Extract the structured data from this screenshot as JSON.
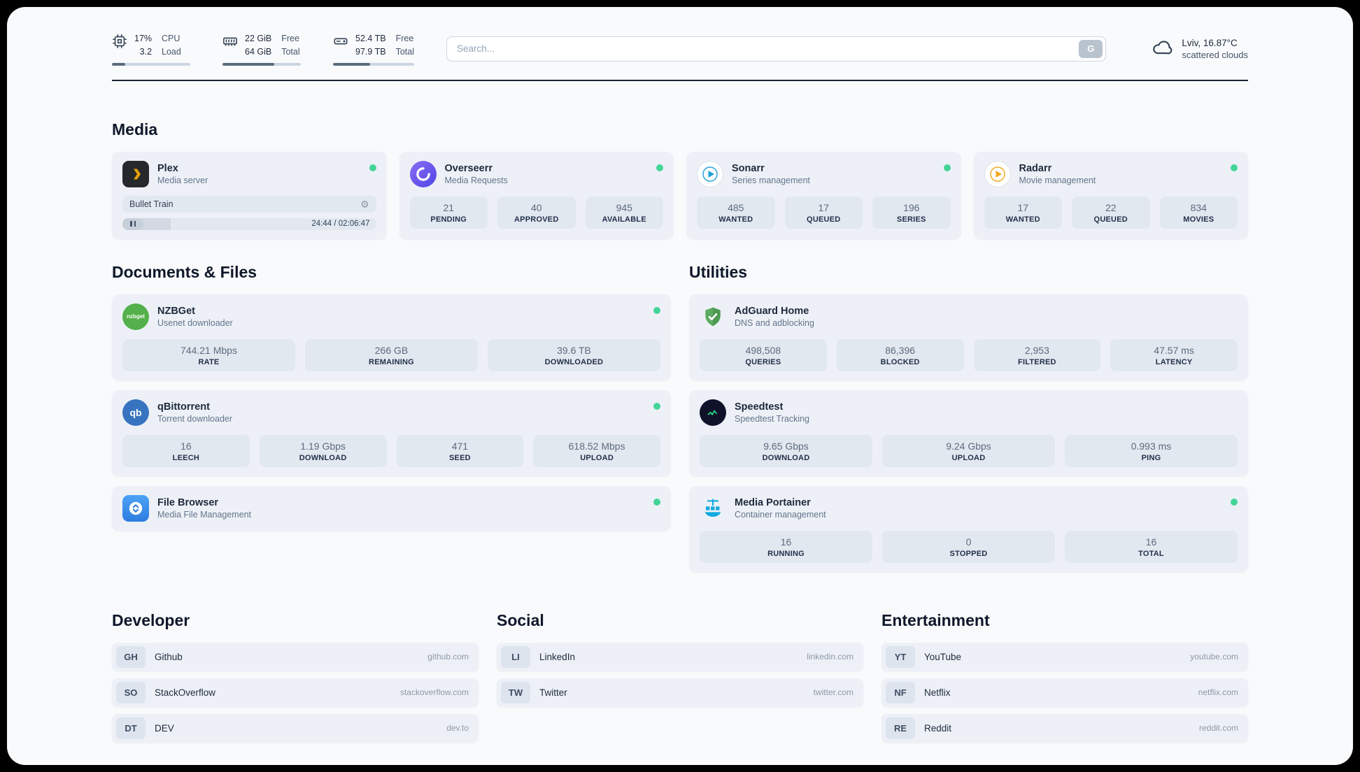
{
  "colors": {
    "status_online": "#43d598",
    "page_bg": "#f8fafc",
    "card_bg": "#edf1f7"
  },
  "icons": {
    "gear_glyph": "⚙",
    "nzbget_text": "nzbget",
    "qbittorrent_text": "qb"
  },
  "topbar": {
    "cpu": {
      "values": [
        "17%",
        "3.2"
      ],
      "labels": [
        "CPU",
        "Load"
      ],
      "progress_pct": 17
    },
    "memory": {
      "values": [
        "22 GiB",
        "64 GiB"
      ],
      "labels": [
        "Free",
        "Total"
      ],
      "progress_pct": 66
    },
    "disk": {
      "values": [
        "52.4 TB",
        "97.9 TB"
      ],
      "labels": [
        "Free",
        "Total"
      ],
      "progress_pct": 46
    },
    "search": {
      "placeholder": "Search...",
      "button_label": "G"
    },
    "weather": {
      "location": "Lviv, 16.87°C",
      "condition": "scattered clouds"
    }
  },
  "media": {
    "title": "Media",
    "plex": {
      "name": "Plex",
      "subtitle": "Media server",
      "now_playing": "Bullet Train",
      "time": "24:44 / 02:06:47",
      "progress_pct": 19
    },
    "overseerr": {
      "name": "Overseerr",
      "subtitle": "Media Requests",
      "stats": [
        {
          "value": "21",
          "label": "PENDING"
        },
        {
          "value": "40",
          "label": "APPROVED"
        },
        {
          "value": "945",
          "label": "AVAILABLE"
        }
      ]
    },
    "sonarr": {
      "name": "Sonarr",
      "subtitle": "Series management",
      "stats": [
        {
          "value": "485",
          "label": "WANTED"
        },
        {
          "value": "17",
          "label": "QUEUED"
        },
        {
          "value": "196",
          "label": "SERIES"
        }
      ]
    },
    "radarr": {
      "name": "Radarr",
      "subtitle": "Movie management",
      "stats": [
        {
          "value": "17",
          "label": "WANTED"
        },
        {
          "value": "22",
          "label": "QUEUED"
        },
        {
          "value": "834",
          "label": "MOVIES"
        }
      ]
    }
  },
  "documents": {
    "title": "Documents & Files",
    "nzbget": {
      "name": "NZBGet",
      "subtitle": "Usenet downloader",
      "stats": [
        {
          "value": "744.21 Mbps",
          "label": "RATE"
        },
        {
          "value": "266 GB",
          "label": "REMAINING"
        },
        {
          "value": "39.6 TB",
          "label": "DOWNLOADED"
        }
      ]
    },
    "qbittorrent": {
      "name": "qBittorrent",
      "subtitle": "Torrent downloader",
      "stats": [
        {
          "value": "16",
          "label": "LEECH"
        },
        {
          "value": "1.19 Gbps",
          "label": "DOWNLOAD"
        },
        {
          "value": "471",
          "label": "SEED"
        },
        {
          "value": "618.52 Mbps",
          "label": "UPLOAD"
        }
      ]
    },
    "filebrowser": {
      "name": "File Browser",
      "subtitle": "Media File Management"
    }
  },
  "utilities": {
    "title": "Utilities",
    "adguard": {
      "name": "AdGuard Home",
      "subtitle": "DNS and adblocking",
      "stats": [
        {
          "value": "498,508",
          "label": "QUERIES"
        },
        {
          "value": "86,396",
          "label": "BLOCKED"
        },
        {
          "value": "2,953",
          "label": "FILTERED"
        },
        {
          "value": "47.57 ms",
          "label": "LATENCY"
        }
      ]
    },
    "speedtest": {
      "name": "Speedtest",
      "subtitle": "Speedtest Tracking",
      "stats": [
        {
          "value": "9.65 Gbps",
          "label": "DOWNLOAD"
        },
        {
          "value": "9.24 Gbps",
          "label": "UPLOAD"
        },
        {
          "value": "0.993 ms",
          "label": "PING"
        }
      ]
    },
    "portainer": {
      "name": "Media Portainer",
      "subtitle": "Container management",
      "stats": [
        {
          "value": "16",
          "label": "RUNNING"
        },
        {
          "value": "0",
          "label": "STOPPED"
        },
        {
          "value": "16",
          "label": "TOTAL"
        }
      ]
    }
  },
  "bookmarks": {
    "developer": {
      "title": "Developer",
      "items": [
        {
          "abbr": "GH",
          "name": "Github",
          "url": "github.com"
        },
        {
          "abbr": "SO",
          "name": "StackOverflow",
          "url": "stackoverflow.com"
        },
        {
          "abbr": "DT",
          "name": "DEV",
          "url": "dev.to"
        }
      ]
    },
    "social": {
      "title": "Social",
      "items": [
        {
          "abbr": "LI",
          "name": "LinkedIn",
          "url": "linkedin.com"
        },
        {
          "abbr": "TW",
          "name": "Twitter",
          "url": "twitter.com"
        }
      ]
    },
    "entertainment": {
      "title": "Entertainment",
      "items": [
        {
          "abbr": "YT",
          "name": "YouTube",
          "url": "youtube.com"
        },
        {
          "abbr": "NF",
          "name": "Netflix",
          "url": "netflix.com"
        },
        {
          "abbr": "RE",
          "name": "Reddit",
          "url": "reddit.com"
        }
      ]
    }
  }
}
